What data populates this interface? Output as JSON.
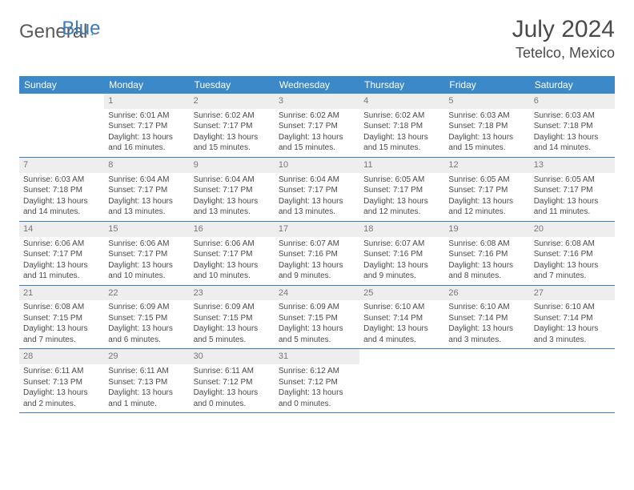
{
  "brand": {
    "part1": "General",
    "part2": "Blue"
  },
  "title": {
    "month_year": "July 2024",
    "location": "Tetelco, Mexico"
  },
  "colors": {
    "header_bg": "#3b89c9",
    "header_text": "#ffffff",
    "daynum_bg": "#eeeeee",
    "daynum_text": "#777777",
    "body_text": "#4a4a4a",
    "rule": "#3b7bbf",
    "brand_gray": "#5a5a5a",
    "brand_blue": "#3b7bbf",
    "page_bg": "#ffffff"
  },
  "fonts": {
    "family": "Arial, Helvetica, sans-serif",
    "title_size_pt": 22,
    "location_size_pt": 14,
    "dayheader_size_pt": 9,
    "cell_size_pt": 7.5
  },
  "day_names": [
    "Sunday",
    "Monday",
    "Tuesday",
    "Wednesday",
    "Thursday",
    "Friday",
    "Saturday"
  ],
  "labels": {
    "sunrise": "Sunrise:",
    "sunset": "Sunset:",
    "daylight": "Daylight:"
  },
  "weeks": [
    [
      {
        "n": "",
        "sr": "",
        "ss": "",
        "dl": ""
      },
      {
        "n": "1",
        "sr": "6:01 AM",
        "ss": "7:17 PM",
        "dl": "13 hours and 16 minutes."
      },
      {
        "n": "2",
        "sr": "6:02 AM",
        "ss": "7:17 PM",
        "dl": "13 hours and 15 minutes."
      },
      {
        "n": "3",
        "sr": "6:02 AM",
        "ss": "7:17 PM",
        "dl": "13 hours and 15 minutes."
      },
      {
        "n": "4",
        "sr": "6:02 AM",
        "ss": "7:18 PM",
        "dl": "13 hours and 15 minutes."
      },
      {
        "n": "5",
        "sr": "6:03 AM",
        "ss": "7:18 PM",
        "dl": "13 hours and 15 minutes."
      },
      {
        "n": "6",
        "sr": "6:03 AM",
        "ss": "7:18 PM",
        "dl": "13 hours and 14 minutes."
      }
    ],
    [
      {
        "n": "7",
        "sr": "6:03 AM",
        "ss": "7:18 PM",
        "dl": "13 hours and 14 minutes."
      },
      {
        "n": "8",
        "sr": "6:04 AM",
        "ss": "7:17 PM",
        "dl": "13 hours and 13 minutes."
      },
      {
        "n": "9",
        "sr": "6:04 AM",
        "ss": "7:17 PM",
        "dl": "13 hours and 13 minutes."
      },
      {
        "n": "10",
        "sr": "6:04 AM",
        "ss": "7:17 PM",
        "dl": "13 hours and 13 minutes."
      },
      {
        "n": "11",
        "sr": "6:05 AM",
        "ss": "7:17 PM",
        "dl": "13 hours and 12 minutes."
      },
      {
        "n": "12",
        "sr": "6:05 AM",
        "ss": "7:17 PM",
        "dl": "13 hours and 12 minutes."
      },
      {
        "n": "13",
        "sr": "6:05 AM",
        "ss": "7:17 PM",
        "dl": "13 hours and 11 minutes."
      }
    ],
    [
      {
        "n": "14",
        "sr": "6:06 AM",
        "ss": "7:17 PM",
        "dl": "13 hours and 11 minutes."
      },
      {
        "n": "15",
        "sr": "6:06 AM",
        "ss": "7:17 PM",
        "dl": "13 hours and 10 minutes."
      },
      {
        "n": "16",
        "sr": "6:06 AM",
        "ss": "7:17 PM",
        "dl": "13 hours and 10 minutes."
      },
      {
        "n": "17",
        "sr": "6:07 AM",
        "ss": "7:16 PM",
        "dl": "13 hours and 9 minutes."
      },
      {
        "n": "18",
        "sr": "6:07 AM",
        "ss": "7:16 PM",
        "dl": "13 hours and 9 minutes."
      },
      {
        "n": "19",
        "sr": "6:08 AM",
        "ss": "7:16 PM",
        "dl": "13 hours and 8 minutes."
      },
      {
        "n": "20",
        "sr": "6:08 AM",
        "ss": "7:16 PM",
        "dl": "13 hours and 7 minutes."
      }
    ],
    [
      {
        "n": "21",
        "sr": "6:08 AM",
        "ss": "7:15 PM",
        "dl": "13 hours and 7 minutes."
      },
      {
        "n": "22",
        "sr": "6:09 AM",
        "ss": "7:15 PM",
        "dl": "13 hours and 6 minutes."
      },
      {
        "n": "23",
        "sr": "6:09 AM",
        "ss": "7:15 PM",
        "dl": "13 hours and 5 minutes."
      },
      {
        "n": "24",
        "sr": "6:09 AM",
        "ss": "7:15 PM",
        "dl": "13 hours and 5 minutes."
      },
      {
        "n": "25",
        "sr": "6:10 AM",
        "ss": "7:14 PM",
        "dl": "13 hours and 4 minutes."
      },
      {
        "n": "26",
        "sr": "6:10 AM",
        "ss": "7:14 PM",
        "dl": "13 hours and 3 minutes."
      },
      {
        "n": "27",
        "sr": "6:10 AM",
        "ss": "7:14 PM",
        "dl": "13 hours and 3 minutes."
      }
    ],
    [
      {
        "n": "28",
        "sr": "6:11 AM",
        "ss": "7:13 PM",
        "dl": "13 hours and 2 minutes."
      },
      {
        "n": "29",
        "sr": "6:11 AM",
        "ss": "7:13 PM",
        "dl": "13 hours and 1 minute."
      },
      {
        "n": "30",
        "sr": "6:11 AM",
        "ss": "7:12 PM",
        "dl": "13 hours and 0 minutes."
      },
      {
        "n": "31",
        "sr": "6:12 AM",
        "ss": "7:12 PM",
        "dl": "13 hours and 0 minutes."
      },
      {
        "n": "",
        "sr": "",
        "ss": "",
        "dl": ""
      },
      {
        "n": "",
        "sr": "",
        "ss": "",
        "dl": ""
      },
      {
        "n": "",
        "sr": "",
        "ss": "",
        "dl": ""
      }
    ]
  ]
}
